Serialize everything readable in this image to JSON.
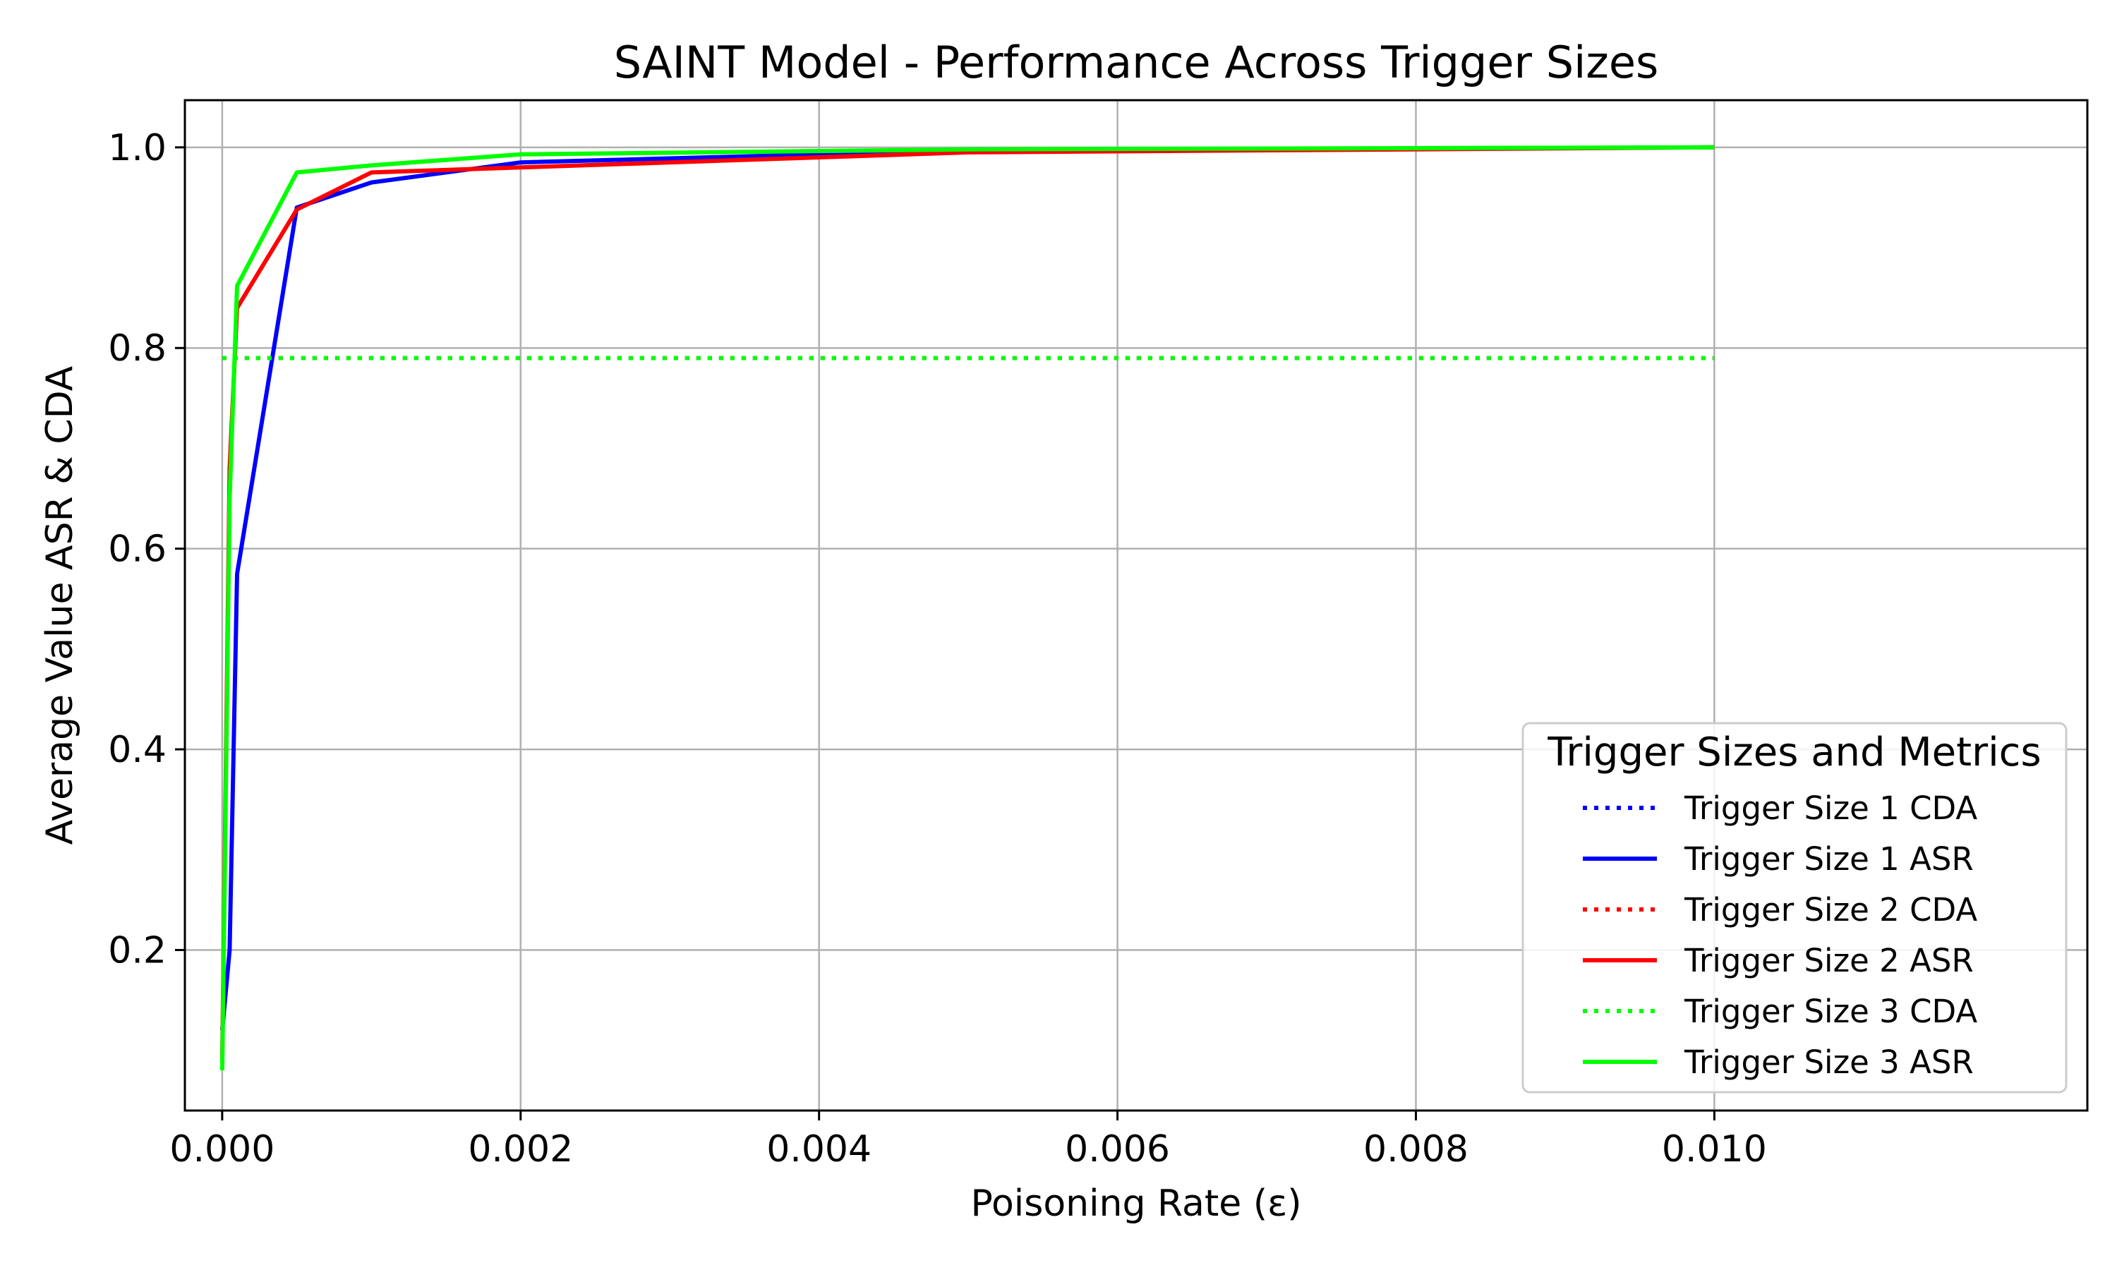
{
  "chart_data": {
    "type": "line",
    "title": "SAINT Model - Performance Across Trigger Sizes",
    "xlabel": "Poisoning Rate (ε)",
    "ylabel": "Average Value ASR & CDA",
    "xlim": [
      -0.00025,
      0.0125
    ],
    "ylim": [
      0.04,
      1.047
    ],
    "xticks": [
      0.0,
      0.002,
      0.004,
      0.006,
      0.008,
      0.01
    ],
    "xtick_labels": [
      "0.000",
      "0.002",
      "0.004",
      "0.006",
      "0.008",
      "0.010"
    ],
    "yticks": [
      0.2,
      0.4,
      0.6,
      0.8,
      1.0
    ],
    "ytick_labels": [
      "0.2",
      "0.4",
      "0.6",
      "0.8",
      "1.0"
    ],
    "grid": true,
    "legend": {
      "title": "Trigger Sizes and Metrics",
      "placement": "lower-right"
    },
    "x": [
      0.0,
      5e-05,
      0.0001,
      0.0005,
      0.001,
      0.002,
      0.005,
      0.01
    ],
    "series": [
      {
        "name": "Trigger Size 1 CDA",
        "color": "#0000ff",
        "style": "dotted",
        "values": [
          0.79,
          0.79,
          0.79,
          0.79,
          0.79,
          0.79,
          0.79,
          0.79
        ]
      },
      {
        "name": "Trigger Size 1 ASR",
        "color": "#0000ff",
        "style": "solid",
        "values": [
          0.12,
          0.2,
          0.575,
          0.94,
          0.965,
          0.985,
          0.997,
          1.0
        ]
      },
      {
        "name": "Trigger Size 2 CDA",
        "color": "#ff0000",
        "style": "dotted",
        "values": [
          0.79,
          0.79,
          0.79,
          0.79,
          0.79,
          0.79,
          0.79,
          0.79
        ]
      },
      {
        "name": "Trigger Size 2 ASR",
        "color": "#ff0000",
        "style": "solid",
        "values": [
          0.09,
          0.68,
          0.84,
          0.938,
          0.975,
          0.98,
          0.995,
          1.0
        ]
      },
      {
        "name": "Trigger Size 3 CDA",
        "color": "#00ff00",
        "style": "dotted",
        "values": [
          0.79,
          0.79,
          0.79,
          0.79,
          0.79,
          0.79,
          0.79,
          0.79
        ]
      },
      {
        "name": "Trigger Size 3 ASR",
        "color": "#00ff00",
        "style": "solid",
        "values": [
          0.08,
          0.65,
          0.862,
          0.975,
          0.982,
          0.993,
          0.998,
          1.0
        ]
      }
    ]
  }
}
